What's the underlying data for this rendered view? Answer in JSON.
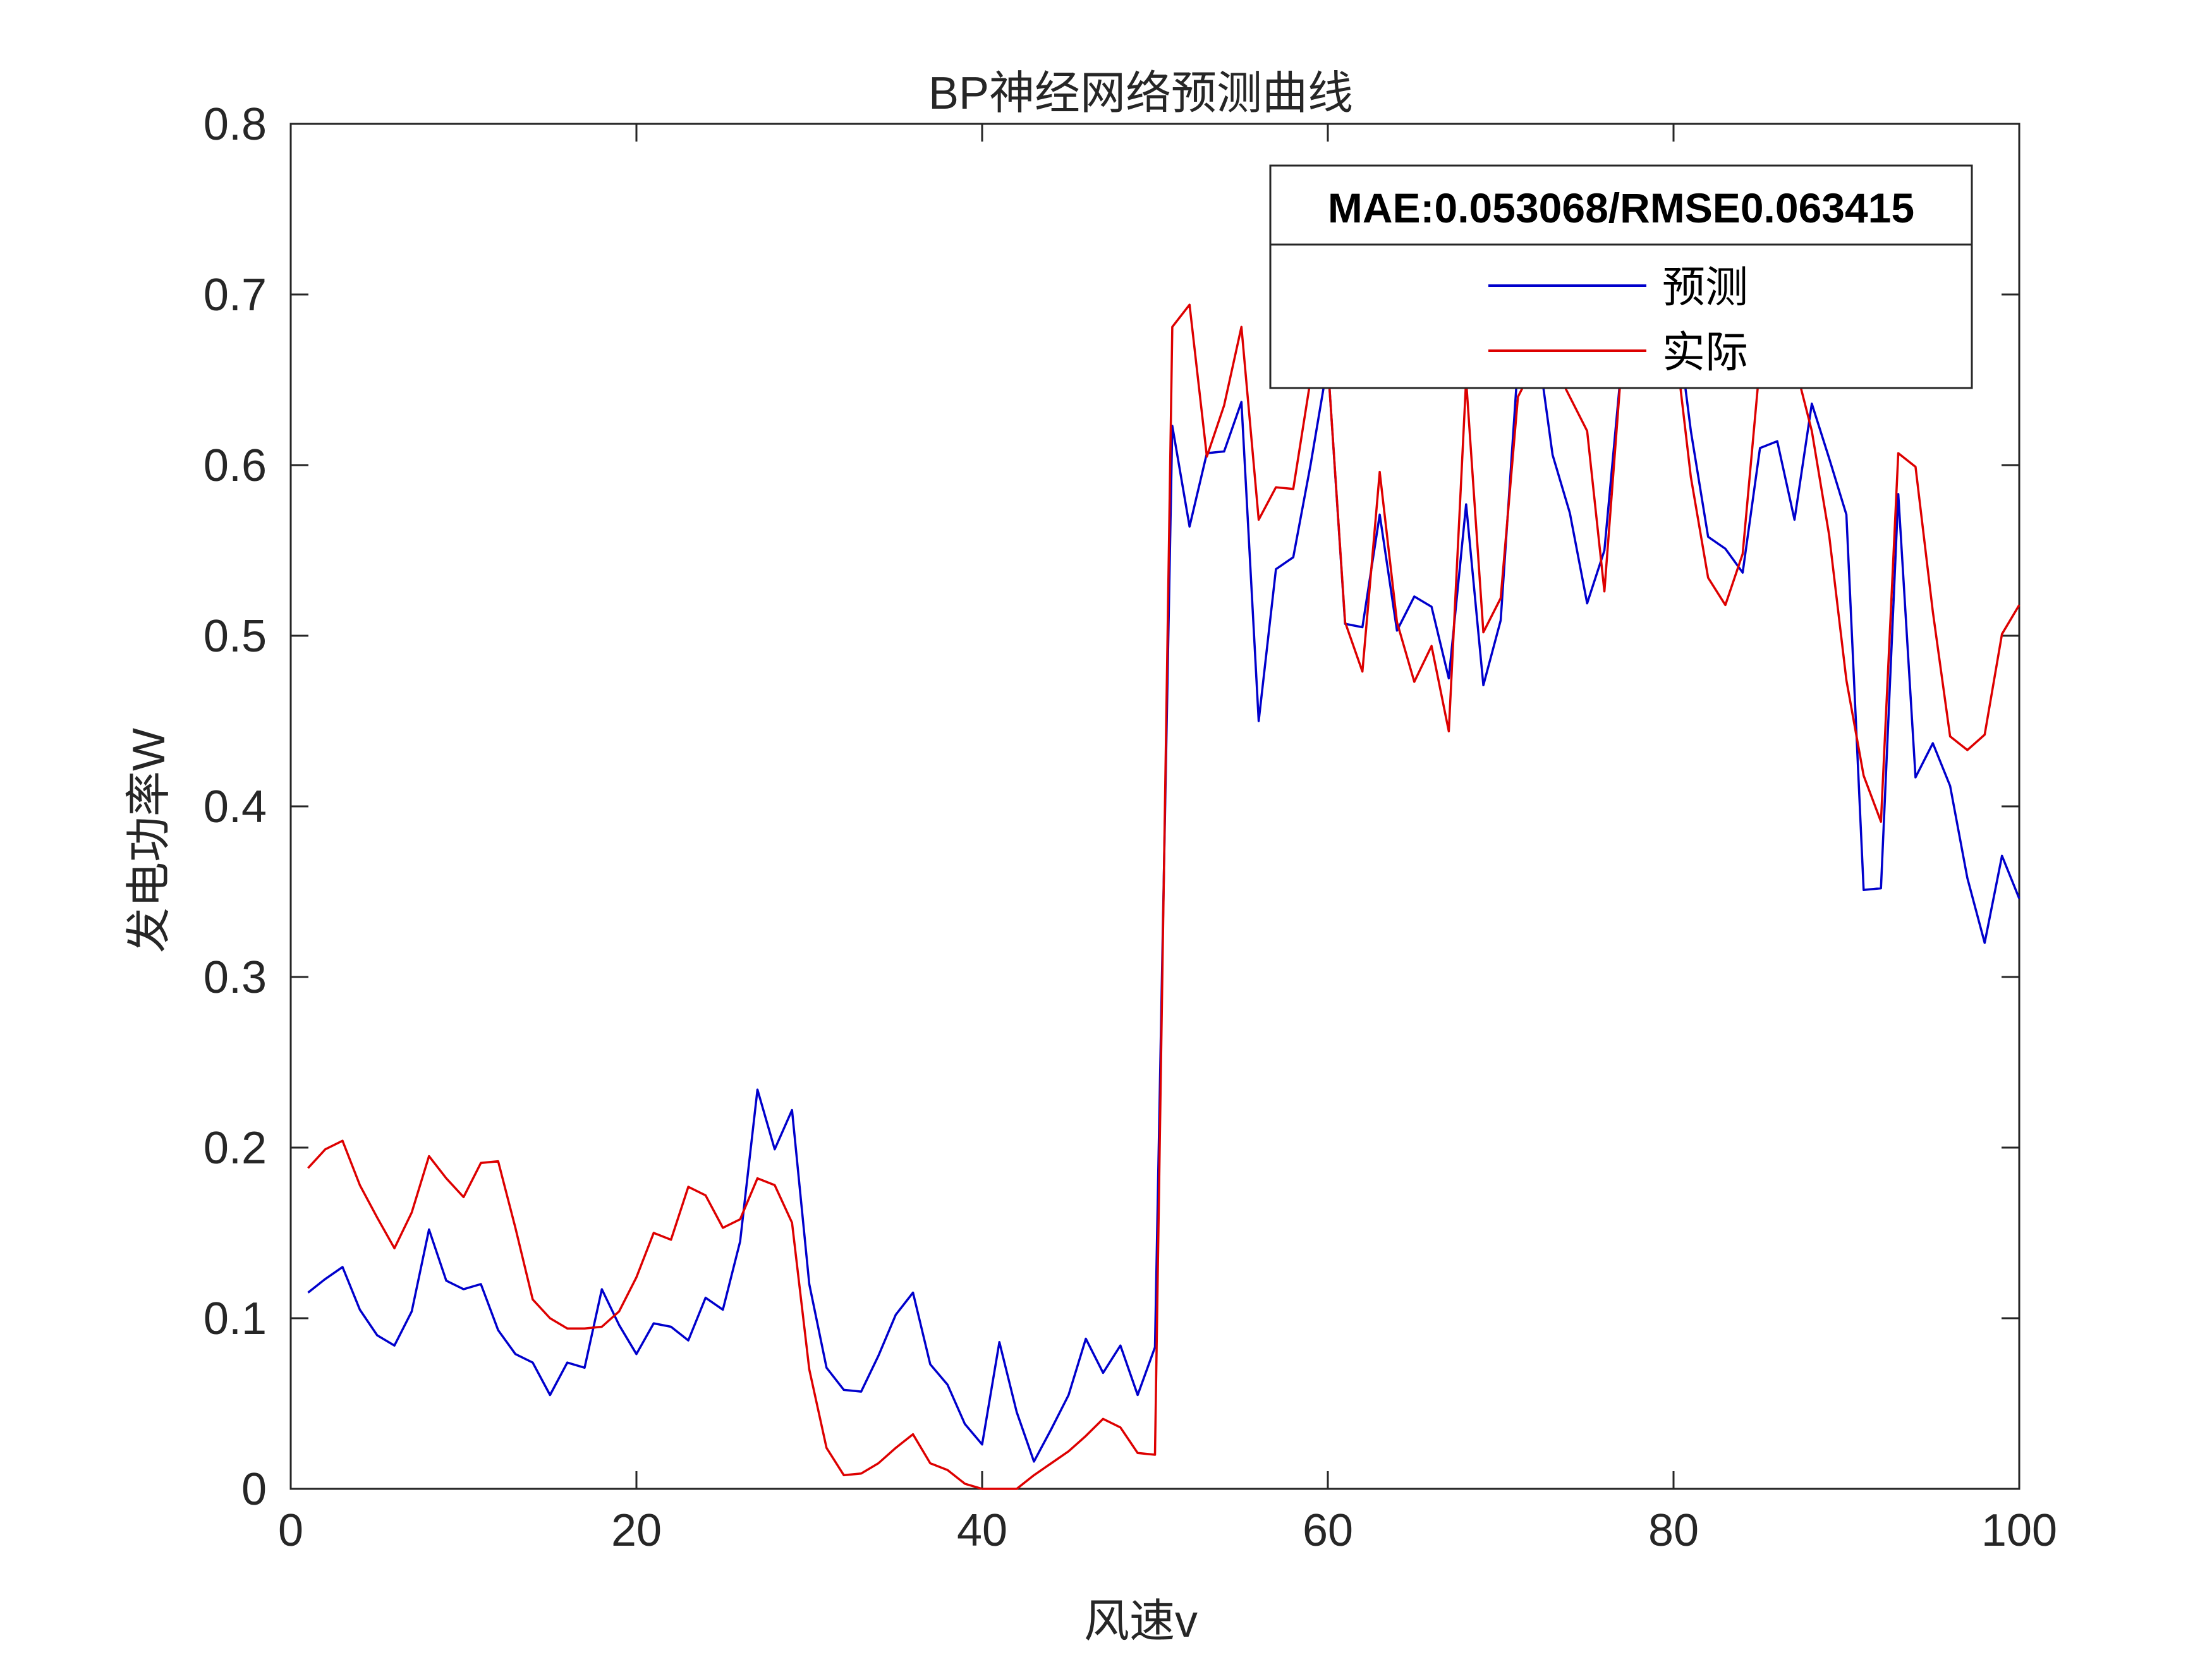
{
  "chart_data": {
    "type": "line",
    "title": "BP神经网络预测曲线",
    "xlabel": "风速v",
    "ylabel": "发电功率W",
    "xlim": [
      0,
      100
    ],
    "ylim": [
      0,
      0.8
    ],
    "xticks": [
      "0",
      "20",
      "40",
      "60",
      "80",
      "100"
    ],
    "yticks": [
      "0",
      "0.1",
      "0.2",
      "0.3",
      "0.4",
      "0.5",
      "0.6",
      "0.7",
      "0.8"
    ],
    "grid": false,
    "legend_position": "top-right",
    "legend_title": "MAE:0.053068/RMSE0.063415",
    "x": [
      1,
      2,
      3,
      4,
      5,
      6,
      7,
      8,
      9,
      10,
      11,
      12,
      13,
      14,
      15,
      16,
      17,
      18,
      19,
      20,
      21,
      22,
      23,
      24,
      25,
      26,
      27,
      28,
      29,
      30,
      31,
      32,
      33,
      34,
      35,
      36,
      37,
      38,
      39,
      40,
      41,
      42,
      43,
      44,
      45,
      46,
      47,
      48,
      49,
      50,
      51,
      52,
      53,
      54,
      55,
      56,
      57,
      58,
      59,
      60,
      61,
      62,
      63,
      64,
      65,
      66,
      67,
      68,
      69,
      70,
      71,
      72,
      73,
      74,
      75,
      76,
      77,
      78,
      79,
      80,
      81,
      82,
      83,
      84,
      85,
      86,
      87,
      88,
      89,
      90,
      91,
      92,
      93,
      94,
      95,
      96,
      97,
      98,
      99,
      100
    ],
    "series": [
      {
        "name": "预测",
        "color": "#0000cc",
        "values": [
          0.115,
          0.123,
          0.13,
          0.105,
          0.09,
          0.084,
          0.104,
          0.152,
          0.122,
          0.117,
          0.12,
          0.093,
          0.079,
          0.074,
          0.055,
          0.074,
          0.071,
          0.117,
          0.096,
          0.079,
          0.097,
          0.095,
          0.087,
          0.112,
          0.105,
          0.145,
          0.234,
          0.199,
          0.222,
          0.12,
          0.071,
          0.058,
          0.057,
          0.078,
          0.102,
          0.115,
          0.073,
          0.061,
          0.038,
          0.026,
          0.086,
          0.045,
          0.016,
          0.035,
          0.055,
          0.088,
          0.068,
          0.084,
          0.055,
          0.083,
          0.623,
          0.564,
          0.607,
          0.608,
          0.637,
          0.45,
          0.539,
          0.546,
          0.6,
          0.66,
          0.507,
          0.505,
          0.571,
          0.503,
          0.523,
          0.517,
          0.475,
          0.577,
          0.471,
          0.509,
          0.66,
          0.68,
          0.606,
          0.572,
          0.519,
          0.55,
          0.66,
          0.68,
          0.7,
          0.7,
          0.62,
          0.558,
          0.551,
          0.537,
          0.61,
          0.614,
          0.568,
          0.636,
          0.604,
          0.571,
          0.351,
          0.352,
          0.583,
          0.417,
          0.437,
          0.412,
          0.358,
          0.32,
          0.371,
          0.346
        ]
      },
      {
        "name": "实际",
        "color": "#dd0000",
        "values": [
          0.188,
          0.199,
          0.204,
          0.178,
          0.159,
          0.141,
          0.162,
          0.195,
          0.182,
          0.171,
          0.191,
          0.192,
          0.153,
          0.111,
          0.1,
          0.094,
          0.094,
          0.095,
          0.104,
          0.124,
          0.15,
          0.146,
          0.177,
          0.172,
          0.153,
          0.158,
          0.182,
          0.178,
          0.156,
          0.07,
          0.024,
          0.008,
          0.009,
          0.015,
          0.024,
          0.032,
          0.015,
          0.011,
          0.003,
          0.0,
          0.0,
          0.0,
          0.008,
          0.015,
          0.022,
          0.031,
          0.041,
          0.036,
          0.021,
          0.02,
          0.681,
          0.694,
          0.605,
          0.635,
          0.681,
          0.568,
          0.587,
          0.586,
          0.65,
          0.66,
          0.508,
          0.479,
          0.596,
          0.508,
          0.473,
          0.494,
          0.444,
          0.65,
          0.502,
          0.522,
          0.64,
          0.66,
          0.66,
          0.64,
          0.62,
          0.526,
          0.66,
          0.69,
          0.7,
          0.68,
          0.593,
          0.534,
          0.518,
          0.548,
          0.66,
          0.66,
          0.66,
          0.62,
          0.559,
          0.474,
          0.418,
          0.391,
          0.607,
          0.599,
          0.514,
          0.441,
          0.433,
          0.442,
          0.501,
          0.518
        ]
      }
    ]
  }
}
